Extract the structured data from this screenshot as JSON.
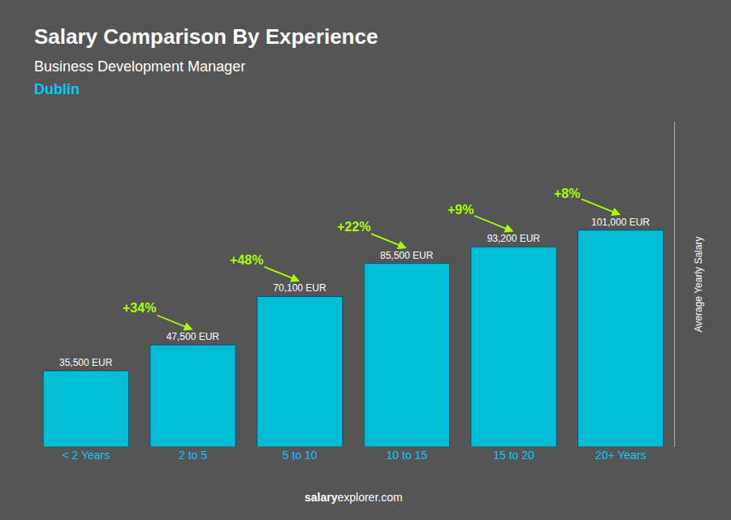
{
  "chart_data": {
    "type": "bar",
    "title": "Salary Comparison By Experience",
    "subtitle": "Business Development Manager",
    "ylabel": "Average Yearly Salary",
    "categories": [
      "< 2 Years",
      "2 to 5",
      "5 to 10",
      "10 to 15",
      "15 to 20",
      "20+ Years"
    ],
    "values": [
      35500,
      47500,
      70100,
      85500,
      93200,
      101000
    ],
    "value_labels": [
      "35,500 EUR",
      "47,500 EUR",
      "70,100 EUR",
      "85,500 EUR",
      "93,200 EUR",
      "101,000 EUR"
    ],
    "data_labels": true,
    "annotations": [
      "Dublin",
      "+34%",
      "+48%",
      "+22%",
      "+9%",
      "+8%",
      "salary",
      "explorer.com"
    ],
    "color": "#00bcd4",
    "ylim": [
      0,
      151500
    ],
    "yticks": [],
    "tick_labels": "x",
    "grid": false
  }
}
